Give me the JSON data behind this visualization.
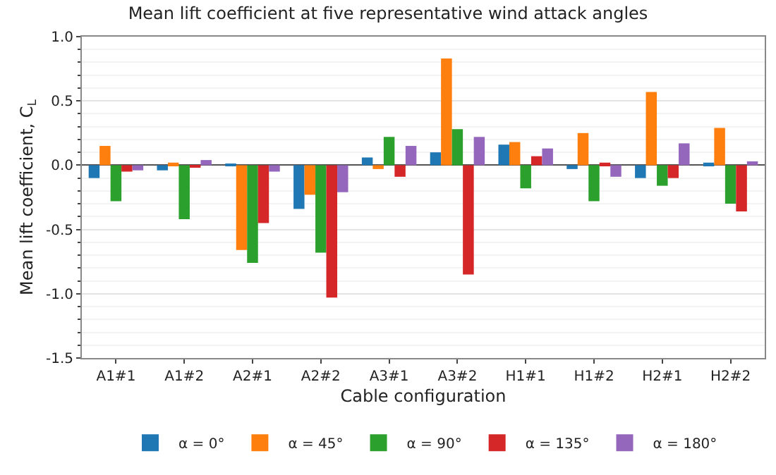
{
  "chart_data": {
    "type": "bar",
    "title": "Mean lift coefficient at five representative wind attack angles",
    "xlabel": "Cable configuration",
    "ylabel": "Mean lift coefficient, C$_{L}$",
    "categories": [
      "A1#1",
      "A1#2",
      "A2#1",
      "A2#2",
      "A3#1",
      "A3#2",
      "H1#1",
      "H1#2",
      "H2#1",
      "H2#2"
    ],
    "series": [
      {
        "name": "α = 0°",
        "color": "#1f77b4",
        "values": [
          -0.1,
          -0.04,
          0.01,
          -0.34,
          0.06,
          0.1,
          0.16,
          -0.03,
          -0.1,
          0.02
        ]
      },
      {
        "name": "α = 45°",
        "color": "#ff7f0e",
        "values": [
          0.15,
          0.02,
          -0.66,
          -0.23,
          -0.03,
          0.83,
          0.18,
          0.25,
          0.57,
          0.29
        ]
      },
      {
        "name": "α = 90°",
        "color": "#2ca02c",
        "values": [
          -0.28,
          -0.42,
          -0.76,
          -0.68,
          0.22,
          0.28,
          -0.18,
          -0.28,
          -0.16,
          -0.3
        ]
      },
      {
        "name": "α = 135°",
        "color": "#d62728",
        "values": [
          -0.05,
          -0.01,
          -0.45,
          -1.03,
          -0.09,
          -0.85,
          0.07,
          0.02,
          -0.1,
          -0.36
        ]
      },
      {
        "name": "α = 180°",
        "color": "#9467bd",
        "values": [
          -0.04,
          0.04,
          -0.05,
          -0.21,
          0.15,
          0.22,
          0.13,
          -0.09,
          0.17,
          0.03
        ]
      }
    ],
    "ylim": [
      -1.5,
      1.0
    ],
    "yticks": [
      -1.5,
      {
        "value": -1,
        "label": "-1.0"
      },
      -0.5,
      {
        "value": 0,
        "label": "0.0"
      },
      0.5,
      {
        "value": 1,
        "label": "1.0"
      }
    ],
    "grid": "y",
    "legend": "bottom"
  }
}
